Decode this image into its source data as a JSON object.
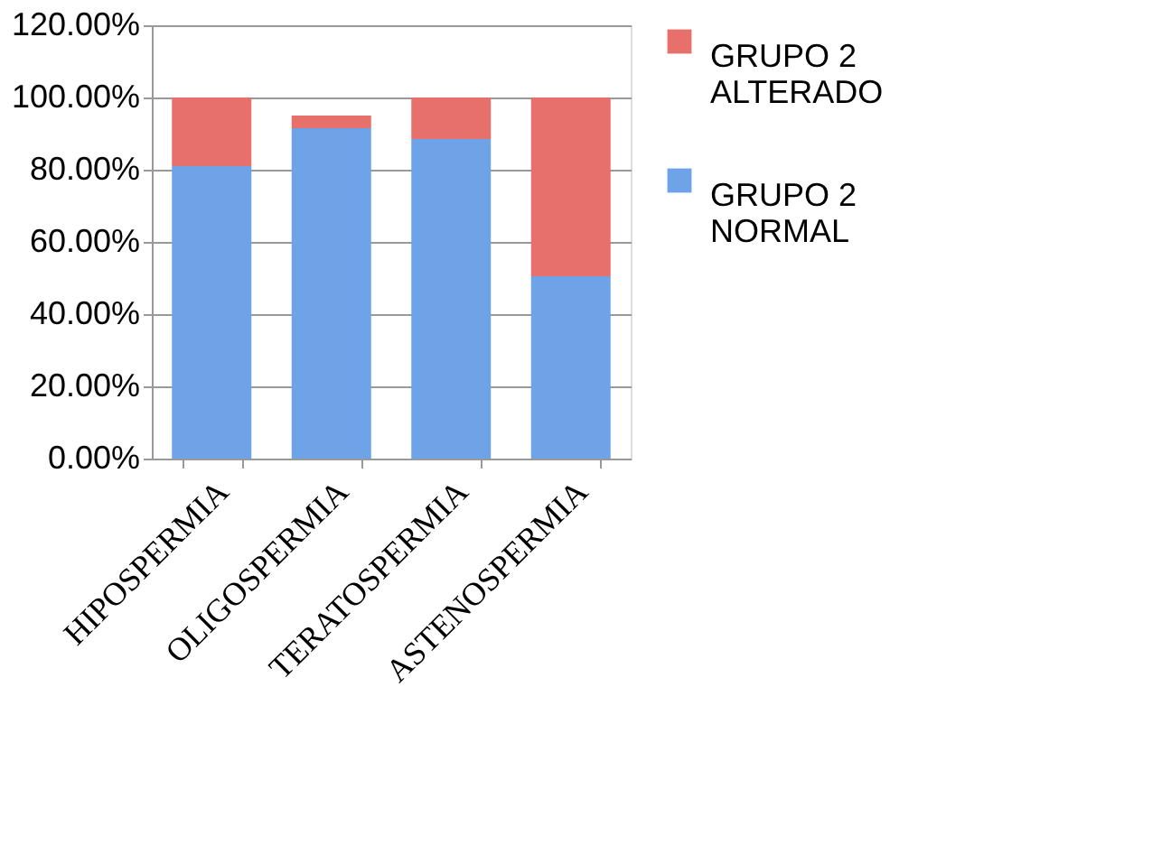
{
  "chart_data": {
    "type": "bar",
    "stacked": true,
    "categories": [
      "HIPOSPERMIA",
      "OLIGOSPERMIA",
      "TERATOSPERMIA",
      "ASTENOSPERMIA"
    ],
    "series": [
      {
        "name": "GRUPO 2 NORMAL",
        "color": "#6fa3e8",
        "values": [
          81,
          91.5,
          88.5,
          50.5
        ]
      },
      {
        "name": "GRUPO 2 ALTERADO",
        "color": "#e8706a",
        "values": [
          19,
          3.5,
          11.5,
          49.5
        ]
      }
    ],
    "ylim": [
      0,
      120
    ],
    "yticks": [
      {
        "value": 0,
        "label": "0.00%"
      },
      {
        "value": 20,
        "label": "20.00%"
      },
      {
        "value": 40,
        "label": "40.00%"
      },
      {
        "value": 60,
        "label": "60.00%"
      },
      {
        "value": 80,
        "label": "80.00%"
      },
      {
        "value": 100,
        "label": "100.00%"
      },
      {
        "value": 120,
        "label": "120.00%"
      }
    ],
    "grid": "y",
    "legend": "right"
  }
}
